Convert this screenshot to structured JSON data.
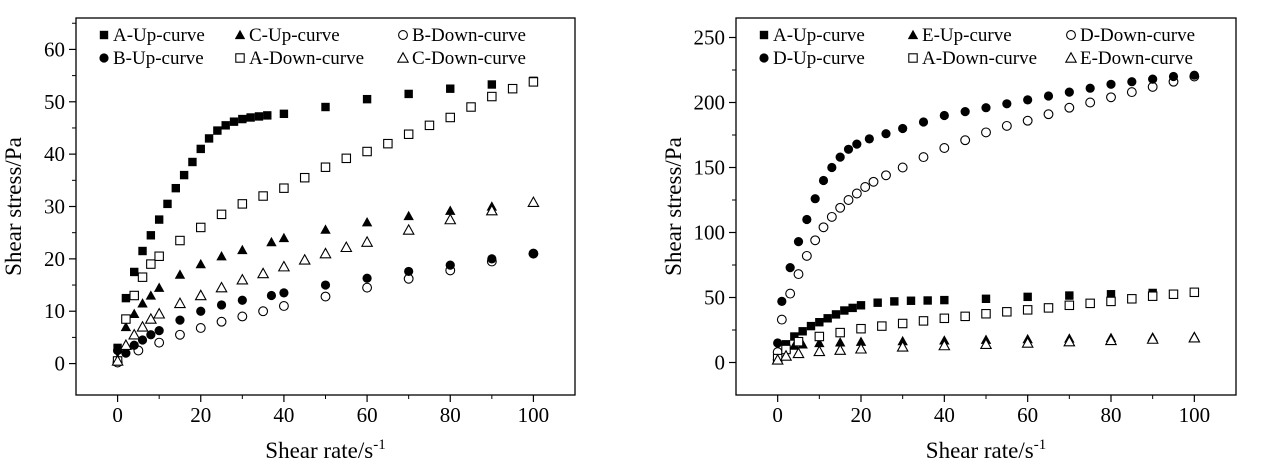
{
  "chart_data": [
    {
      "type": "scatter",
      "xlabel": "Shear rate/s",
      "xlabel_sup": "-1",
      "ylabel": "Shear stress/Pa",
      "xlim": [
        -10,
        110
      ],
      "ylim": [
        -6,
        66
      ],
      "xticks": [
        "0",
        "20",
        "40",
        "60",
        "80",
        "100"
      ],
      "yticks": [
        "0",
        "10",
        "20",
        "30",
        "40",
        "50",
        "60"
      ],
      "legend": [
        "A-Up-curve",
        "C-Up-curve",
        "B-Down-curve",
        "B-Up-curve",
        "A-Down-curve",
        "C-Down-curve"
      ],
      "legend_position": "top",
      "grid": false,
      "series": [
        {
          "name": "A-Up-curve",
          "marker": "filled-square",
          "x": [
            0,
            2,
            4,
            6,
            8,
            10,
            12,
            14,
            16,
            18,
            20,
            22,
            24,
            26,
            28,
            30,
            32,
            34,
            36,
            40,
            50,
            60,
            70,
            80,
            90,
            100
          ],
          "y": [
            3,
            12.5,
            17.5,
            21.5,
            24.5,
            27.5,
            30.5,
            33.5,
            36,
            38.5,
            41,
            43,
            44.5,
            45.5,
            46.2,
            46.7,
            47,
            47.2,
            47.4,
            47.7,
            49,
            50.5,
            51.5,
            52.5,
            53.3,
            54
          ]
        },
        {
          "name": "C-Up-curve",
          "marker": "filled-triangle",
          "x": [
            0,
            2,
            4,
            6,
            8,
            10,
            15,
            20,
            25,
            30,
            37,
            40,
            50,
            60,
            70,
            80,
            90,
            100
          ],
          "y": [
            1,
            7,
            9.5,
            11.5,
            13,
            14.5,
            17,
            19,
            20.5,
            21.7,
            23.2,
            24,
            25.6,
            27,
            28.2,
            29.2,
            30,
            30.8
          ]
        },
        {
          "name": "B-Down-curve",
          "marker": "open-circle",
          "x": [
            0,
            5,
            10,
            15,
            20,
            25,
            30,
            35,
            40,
            50,
            60,
            70,
            80,
            90,
            100
          ],
          "y": [
            0.2,
            2.5,
            4,
            5.5,
            6.8,
            8,
            9,
            10,
            11,
            12.8,
            14.5,
            16.2,
            17.8,
            19.5,
            21
          ]
        },
        {
          "name": "B-Up-curve",
          "marker": "filled-circle",
          "x": [
            0,
            2,
            4,
            6,
            8,
            10,
            15,
            20,
            25,
            30,
            37,
            40,
            50,
            60,
            70,
            80,
            90,
            100
          ],
          "y": [
            2.5,
            2,
            3.5,
            4.5,
            5.5,
            6.3,
            8.3,
            10,
            11.2,
            12.1,
            13,
            13.5,
            15,
            16.3,
            17.6,
            18.8,
            20,
            21
          ]
        },
        {
          "name": "A-Down-curve",
          "marker": "open-square",
          "x": [
            0,
            2,
            4,
            6,
            8,
            10,
            15,
            20,
            25,
            30,
            35,
            40,
            45,
            50,
            55,
            60,
            65,
            70,
            75,
            80,
            85,
            90,
            95,
            100
          ],
          "y": [
            0.5,
            8.5,
            13,
            16.5,
            19,
            20.5,
            23.5,
            26,
            28.5,
            30.5,
            32,
            33.5,
            35.5,
            37.5,
            39.2,
            40.5,
            42,
            43.8,
            45.5,
            47,
            49,
            51,
            52.5,
            53.8
          ]
        },
        {
          "name": "C-Down-curve",
          "marker": "open-triangle",
          "x": [
            0,
            2,
            4,
            6,
            8,
            10,
            15,
            20,
            25,
            30,
            35,
            40,
            45,
            50,
            55,
            60,
            70,
            80,
            90,
            100
          ],
          "y": [
            0.5,
            3.5,
            5.5,
            7,
            8.5,
            9.5,
            11.5,
            13,
            14.5,
            16,
            17.2,
            18.5,
            19.8,
            21,
            22.2,
            23.2,
            25.5,
            27.5,
            29.2,
            30.8
          ]
        }
      ]
    },
    {
      "type": "scatter",
      "xlabel": "Shear rate/s",
      "xlabel_sup": "-1",
      "ylabel": "Shear stress/Pa",
      "xlim": [
        -10,
        110
      ],
      "ylim": [
        -25,
        265
      ],
      "xticks": [
        "0",
        "20",
        "40",
        "60",
        "80",
        "100"
      ],
      "yticks": [
        "0",
        "50",
        "100",
        "150",
        "200",
        "250"
      ],
      "legend": [
        "A-Up-curve",
        "E-Up-curve",
        "D-Down-curve",
        "D-Up-curve",
        "A-Down-curve",
        "E-Down-curve"
      ],
      "legend_position": "top",
      "grid": false,
      "series": [
        {
          "name": "A-Up-curve",
          "marker": "filled-square",
          "x": [
            0,
            2,
            4,
            6,
            8,
            10,
            12,
            14,
            16,
            18,
            20,
            24,
            28,
            32,
            36,
            40,
            50,
            60,
            70,
            80,
            90,
            100
          ],
          "y": [
            5,
            14,
            20,
            24,
            28,
            31,
            34,
            37,
            40,
            42,
            44,
            46,
            47,
            47.5,
            47.7,
            48,
            49,
            50.5,
            51.5,
            52.5,
            53.5,
            54
          ]
        },
        {
          "name": "E-Up-curve",
          "marker": "filled-triangle",
          "x": [
            0,
            2,
            4,
            6,
            10,
            15,
            20,
            30,
            40,
            50,
            60,
            70,
            80,
            90,
            100
          ],
          "y": [
            5,
            11,
            13,
            14,
            15,
            15.5,
            16,
            16.5,
            17,
            17.5,
            18,
            18.5,
            19,
            19.5,
            20
          ]
        },
        {
          "name": "D-Down-curve",
          "marker": "open-circle",
          "x": [
            0,
            1,
            3,
            5,
            7,
            9,
            11,
            13,
            15,
            17,
            19,
            21,
            23,
            26,
            30,
            35,
            40,
            45,
            50,
            55,
            60,
            65,
            70,
            75,
            80,
            85,
            90,
            95,
            100
          ],
          "y": [
            8,
            33,
            53,
            68,
            82,
            94,
            104,
            112,
            119,
            125,
            130,
            135,
            139,
            144,
            150,
            158,
            165,
            171,
            177,
            182,
            186,
            191,
            196,
            200,
            204,
            208,
            212,
            216,
            220
          ]
        },
        {
          "name": "D-Up-curve",
          "marker": "filled-circle",
          "x": [
            0,
            1,
            3,
            5,
            7,
            9,
            11,
            13,
            15,
            17,
            19,
            22,
            26,
            30,
            35,
            40,
            45,
            50,
            55,
            60,
            65,
            70,
            75,
            80,
            85,
            90,
            95,
            100
          ],
          "y": [
            15,
            47,
            73,
            93,
            110,
            126,
            140,
            150,
            158,
            164,
            168,
            172,
            176,
            180,
            185,
            190,
            193,
            196,
            199,
            202,
            205,
            208,
            211,
            214,
            216,
            218,
            220,
            221
          ]
        },
        {
          "name": "A-Down-curve",
          "marker": "open-square",
          "x": [
            0,
            2,
            5,
            10,
            15,
            20,
            25,
            30,
            35,
            40,
            45,
            50,
            55,
            60,
            65,
            70,
            75,
            80,
            85,
            90,
            95,
            100
          ],
          "y": [
            3,
            10,
            16,
            20,
            23,
            26,
            28,
            30,
            32,
            34,
            35.5,
            37.5,
            39,
            40.5,
            42,
            44,
            45.5,
            47,
            49,
            51,
            52.5,
            54
          ]
        },
        {
          "name": "E-Down-curve",
          "marker": "open-triangle",
          "x": [
            0,
            2,
            5,
            10,
            15,
            20,
            30,
            40,
            50,
            60,
            70,
            80,
            90,
            100
          ],
          "y": [
            2,
            5,
            7,
            8.5,
            9.5,
            10.5,
            12,
            13,
            14,
            15,
            16,
            17,
            18,
            19
          ]
        }
      ]
    }
  ]
}
